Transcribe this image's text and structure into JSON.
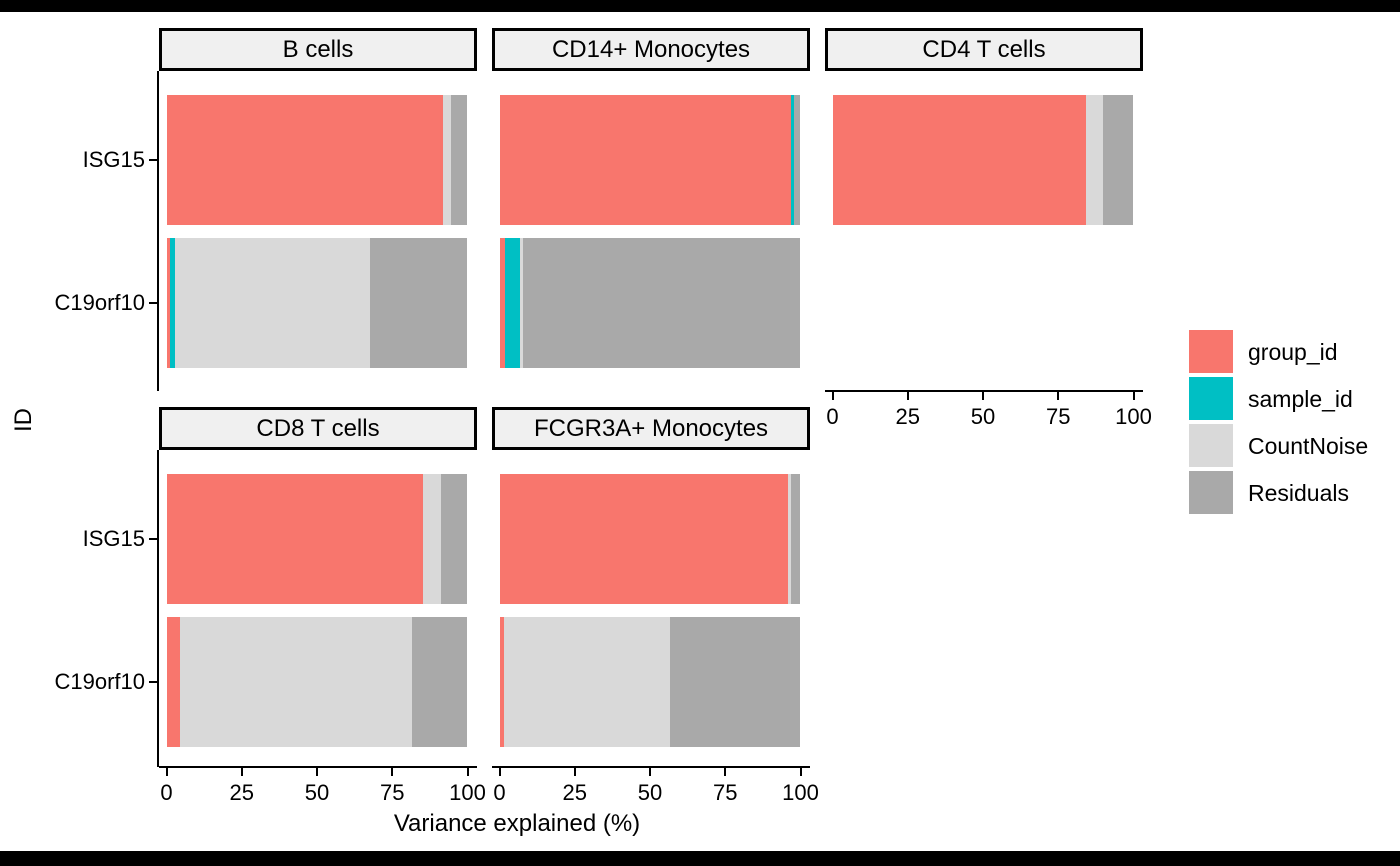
{
  "figure": {
    "y_axis_title": "ID",
    "x_axis_title": "Variance explained (%)"
  },
  "colors": {
    "group_id": "#F8766D",
    "sample_id": "#00BFC4",
    "CountNoise": "#D9D9D9",
    "Residuals": "#A9A9A9",
    "strip_fill": "#F0F0F0",
    "strip_border": "#000000",
    "axis_line": "#000000",
    "background": "#FFFFFF",
    "frame_bars": "#000000"
  },
  "legend": {
    "position": "right",
    "items": [
      {
        "label": "group_id",
        "color": "#F8766D"
      },
      {
        "label": "sample_id",
        "color": "#00BFC4"
      },
      {
        "label": "CountNoise",
        "color": "#D9D9D9"
      },
      {
        "label": "Residuals",
        "color": "#A9A9A9"
      }
    ]
  },
  "chart_data": {
    "type": "bar",
    "orientation": "horizontal",
    "stacked": true,
    "units": "percent",
    "title": "",
    "xlabel": "Variance explained (%)",
    "ylabel": "ID",
    "xlim": [
      0,
      100
    ],
    "x_ticks": [
      0,
      25,
      50,
      75,
      100
    ],
    "grid": false,
    "legend_position": "right",
    "y_categories": [
      "ISG15",
      "C19orf10"
    ],
    "series_order": [
      "group_id",
      "sample_id",
      "CountNoise",
      "Residuals"
    ],
    "facets": [
      {
        "title": "B cells",
        "row": 0,
        "col": 0,
        "bars": [
          {
            "category": "ISG15",
            "values": {
              "group_id": 91.8,
              "sample_id": 0,
              "CountNoise": 2.8,
              "Residuals": 5.4
            }
          },
          {
            "category": "C19orf10",
            "values": {
              "group_id": 1.0,
              "sample_id": 1.9,
              "CountNoise": 64.7,
              "Residuals": 32.4
            }
          }
        ]
      },
      {
        "title": "CD14+ Monocytes",
        "row": 0,
        "col": 1,
        "bars": [
          {
            "category": "ISG15",
            "values": {
              "group_id": 96.9,
              "sample_id": 1.1,
              "CountNoise": 0,
              "Residuals": 2.0
            }
          },
          {
            "category": "C19orf10",
            "values": {
              "group_id": 1.8,
              "sample_id": 4.9,
              "CountNoise": 1.1,
              "Residuals": 92.2
            }
          }
        ]
      },
      {
        "title": "CD4 T cells",
        "row": 0,
        "col": 2,
        "bars": [
          {
            "category": "ISG15",
            "values": {
              "group_id": 84.3,
              "sample_id": 0,
              "CountNoise": 5.5,
              "Residuals": 10.2
            }
          }
        ]
      },
      {
        "title": "CD8 T cells",
        "row": 1,
        "col": 0,
        "bars": [
          {
            "category": "ISG15",
            "values": {
              "group_id": 85.2,
              "sample_id": 0,
              "CountNoise": 6.0,
              "Residuals": 8.8
            }
          },
          {
            "category": "C19orf10",
            "values": {
              "group_id": 4.5,
              "sample_id": 0,
              "CountNoise": 77.1,
              "Residuals": 18.4
            }
          }
        ]
      },
      {
        "title": "FCGR3A+ Monocytes",
        "row": 1,
        "col": 1,
        "bars": [
          {
            "category": "ISG15",
            "values": {
              "group_id": 95.8,
              "sample_id": 0,
              "CountNoise": 1.1,
              "Residuals": 3.1
            }
          },
          {
            "category": "C19orf10",
            "values": {
              "group_id": 1.5,
              "sample_id": 0,
              "CountNoise": 55.1,
              "Residuals": 43.4
            }
          }
        ]
      }
    ]
  }
}
